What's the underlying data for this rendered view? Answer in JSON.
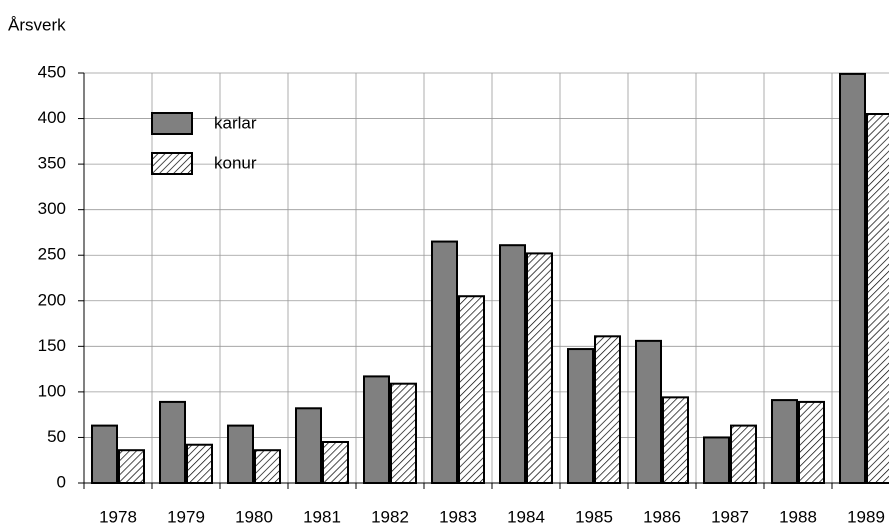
{
  "chart_data": {
    "type": "bar",
    "y_label": "Årsverk",
    "categories": [
      "1978",
      "1979",
      "1980",
      "1981",
      "1982",
      "1983",
      "1984",
      "1985",
      "1986",
      "1987",
      "1988",
      "1989"
    ],
    "series": [
      {
        "name": "karlar",
        "color": "#808080",
        "pattern": "solid",
        "values": [
          63,
          89,
          63,
          82,
          117,
          265,
          261,
          147,
          156,
          50,
          91,
          449
        ]
      },
      {
        "name": "konur",
        "color": "#000000",
        "pattern": "hatch",
        "values": [
          36,
          42,
          36,
          45,
          109,
          205,
          252,
          161,
          94,
          63,
          89,
          405
        ]
      }
    ],
    "ylim": [
      0,
      450
    ],
    "yticks": [
      0,
      50,
      100,
      150,
      200,
      250,
      300,
      350,
      400,
      450
    ],
    "grid": true,
    "legend": "upper left"
  }
}
